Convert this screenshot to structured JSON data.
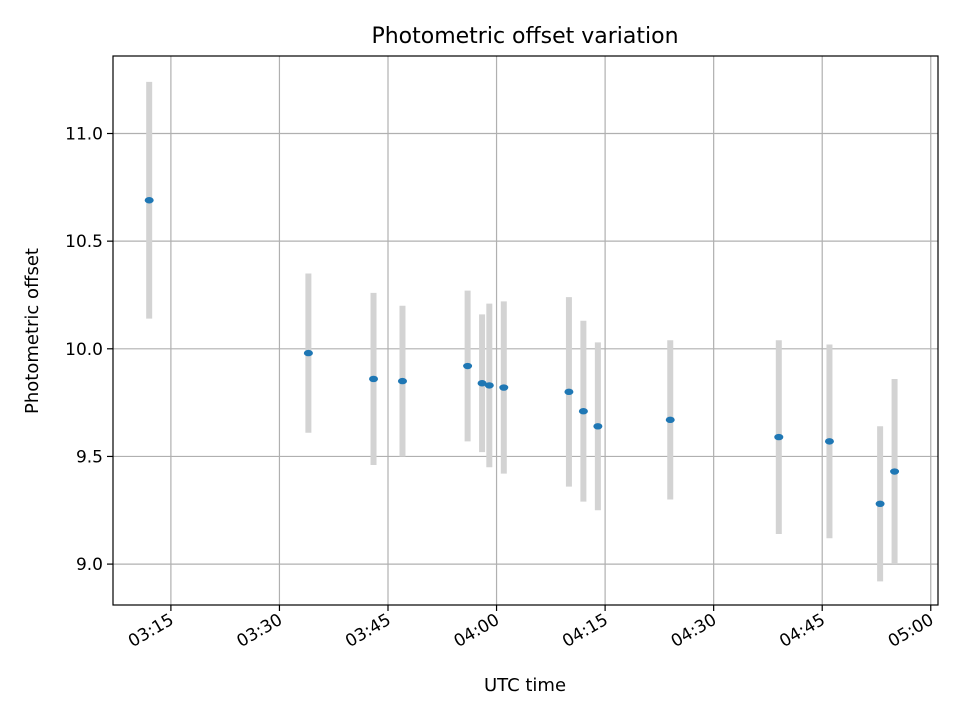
{
  "chart_data": {
    "type": "scatter",
    "title": "Photometric offset variation",
    "xlabel": "UTC time",
    "ylabel": "Photometric offset",
    "x_ticks": [
      "03:15",
      "03:30",
      "03:45",
      "04:00",
      "04:15",
      "04:30",
      "04:45",
      "05:00"
    ],
    "y_ticks": [
      "9.0",
      "9.5",
      "10.0",
      "10.5",
      "11.0"
    ],
    "xlim": [
      "03:07",
      "05:01"
    ],
    "ylim": [
      8.81,
      11.36
    ],
    "grid": true,
    "colors": {
      "marker": "#1f77b4",
      "errorbar": "#d3d3d3",
      "grid": "#b0b0b0"
    },
    "series": [
      {
        "points": [
          {
            "x": "03:12",
            "y": 10.69,
            "err": 0.55
          },
          {
            "x": "03:34",
            "y": 9.98,
            "err": 0.37
          },
          {
            "x": "03:43",
            "y": 9.86,
            "err": 0.4
          },
          {
            "x": "03:47",
            "y": 9.85,
            "err": 0.35
          },
          {
            "x": "03:56",
            "y": 9.92,
            "err": 0.35
          },
          {
            "x": "03:58",
            "y": 9.84,
            "err": 0.32
          },
          {
            "x": "03:59",
            "y": 9.83,
            "err": 0.38
          },
          {
            "x": "04:01",
            "y": 9.82,
            "err": 0.4
          },
          {
            "x": "04:10",
            "y": 9.8,
            "err": 0.44
          },
          {
            "x": "04:12",
            "y": 9.71,
            "err": 0.42
          },
          {
            "x": "04:14",
            "y": 9.64,
            "err": 0.39
          },
          {
            "x": "04:24",
            "y": 9.67,
            "err": 0.37
          },
          {
            "x": "04:39",
            "y": 9.59,
            "err": 0.45
          },
          {
            "x": "04:46",
            "y": 9.57,
            "err": 0.45
          },
          {
            "x": "04:53",
            "y": 9.28,
            "err": 0.36
          },
          {
            "x": "04:55",
            "y": 9.43,
            "err": 0.43
          }
        ]
      }
    ]
  }
}
